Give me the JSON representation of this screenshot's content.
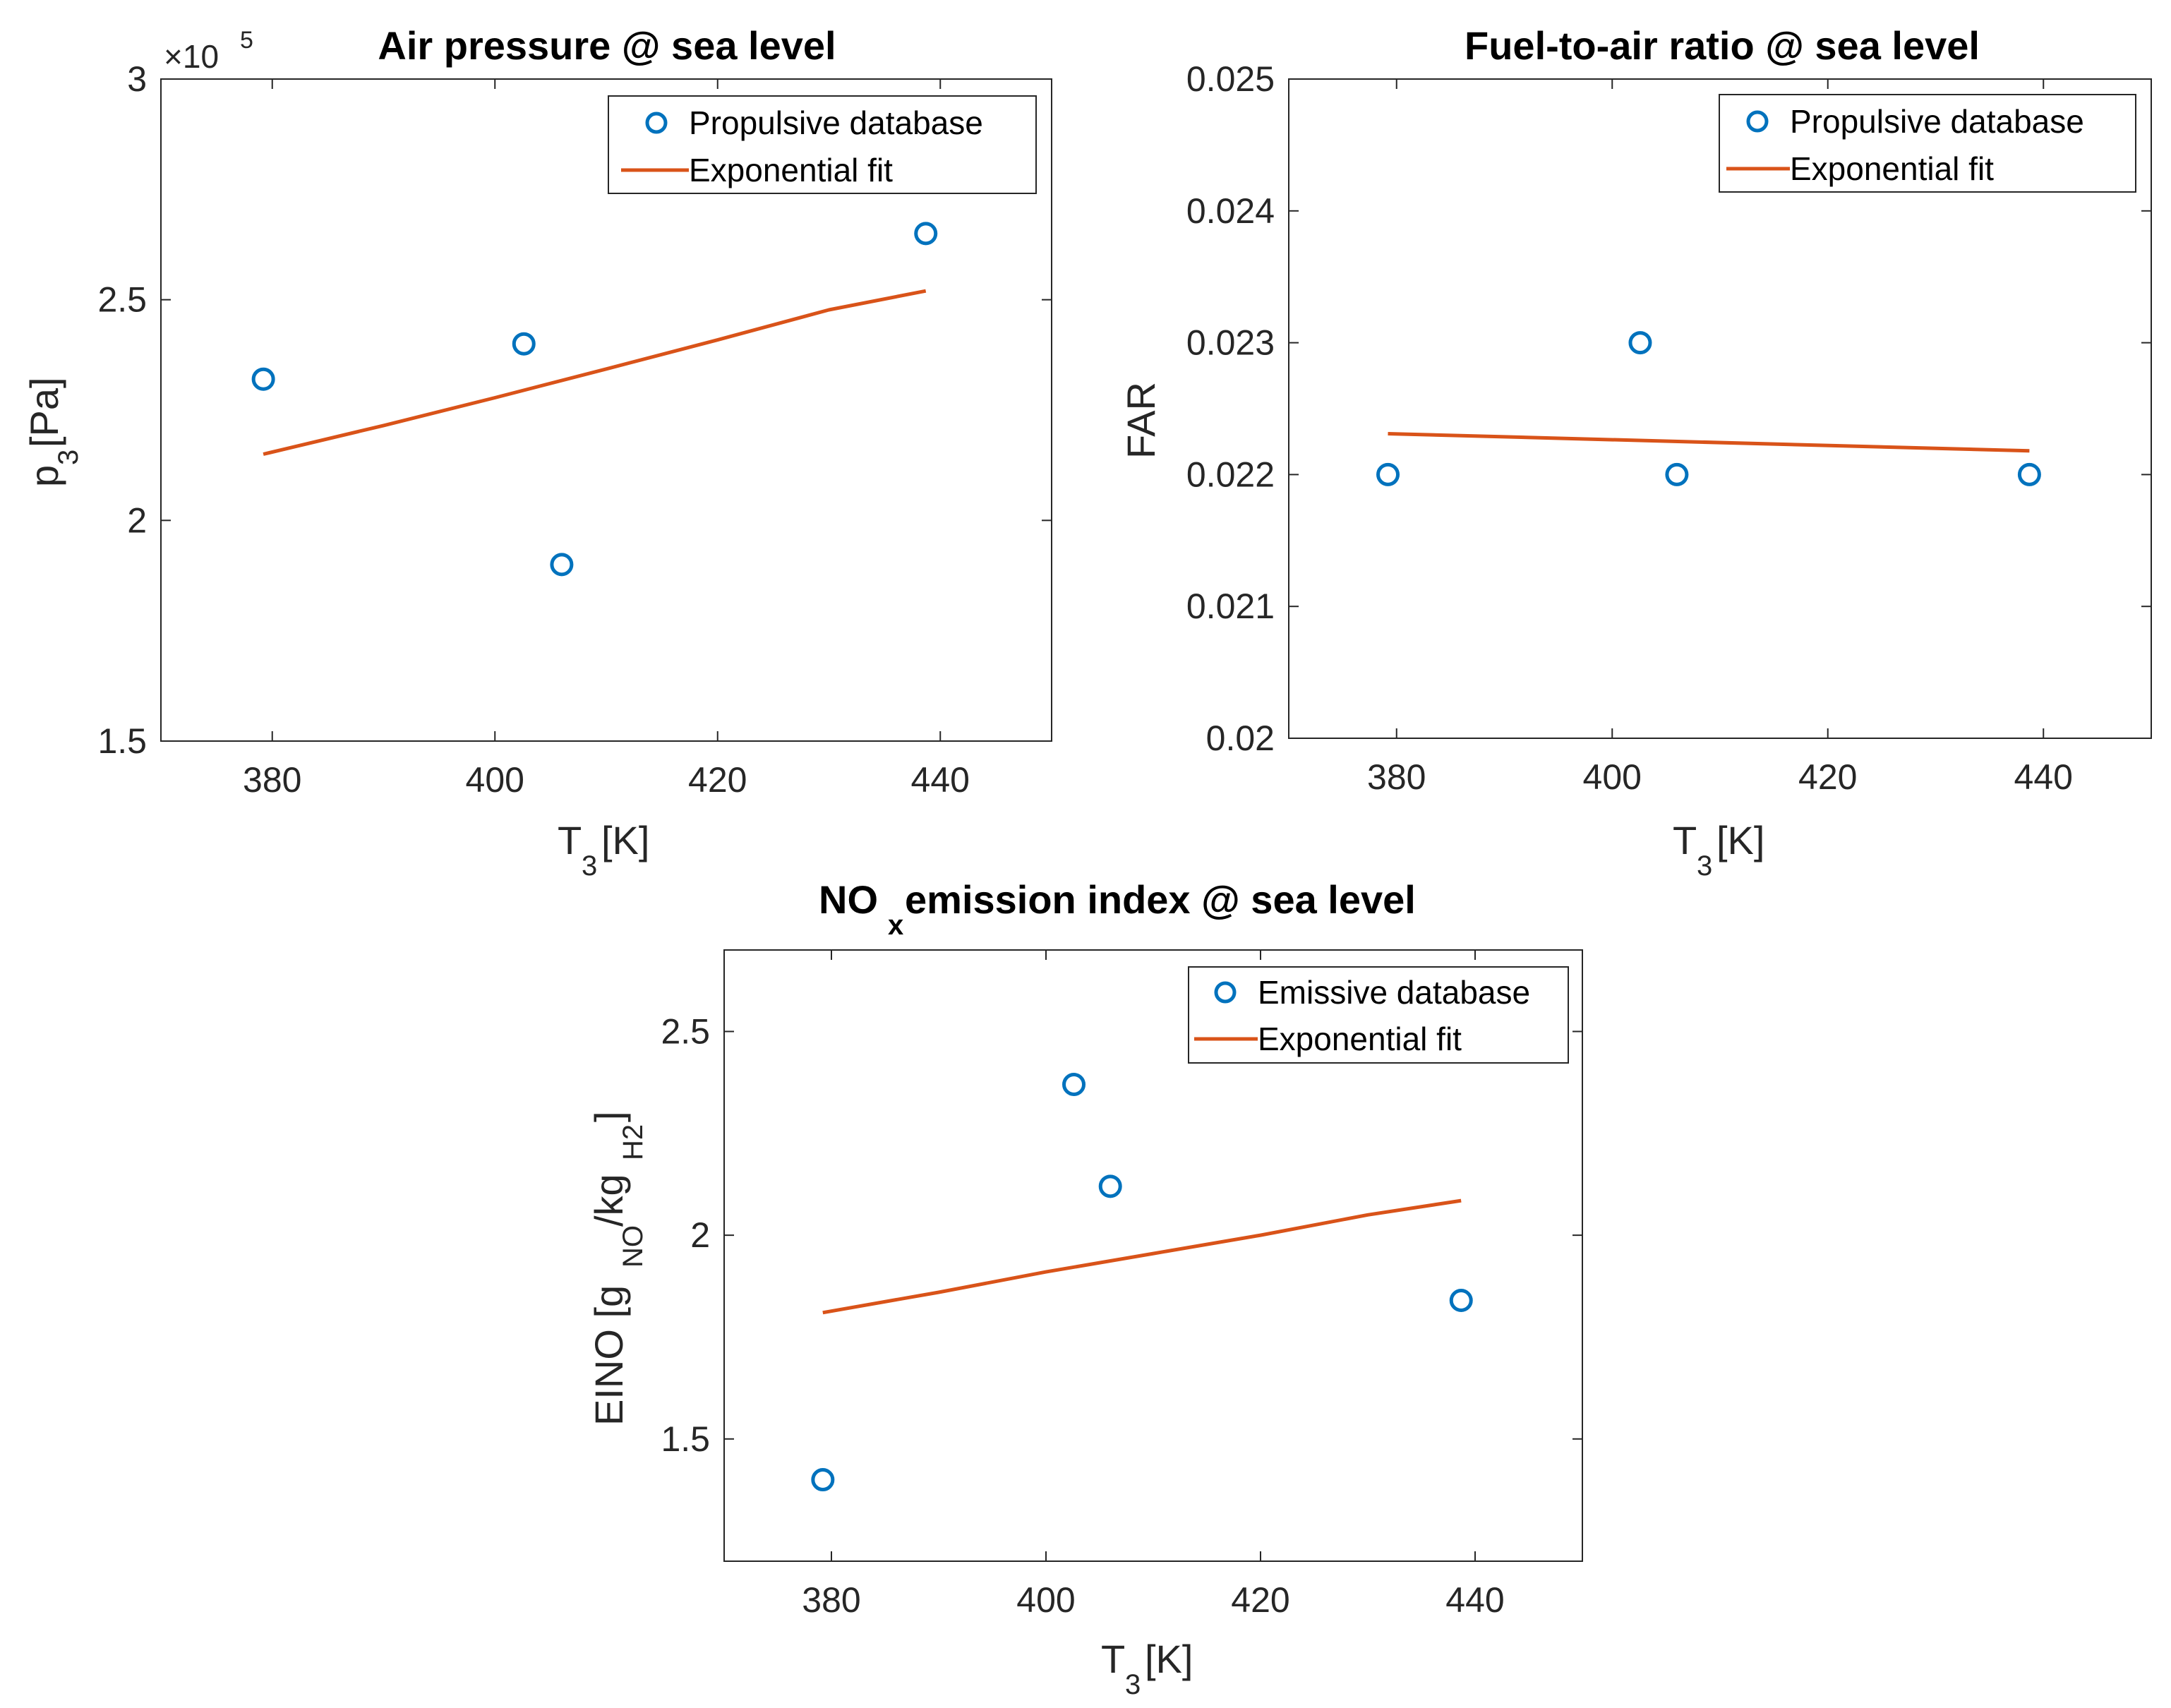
{
  "colors": {
    "scatter": "#0072BD",
    "fit": "#D95319",
    "axis": "#262626",
    "background": "#ffffff"
  },
  "chart_data": [
    {
      "id": "air-pressure",
      "type": "scatter",
      "title": "Air pressure @ sea level",
      "xlabel": {
        "main": "T",
        "sub": "3",
        "rest": " [K]"
      },
      "ylabel": {
        "main": "p",
        "sub": "3",
        "rest": " [Pa]"
      },
      "xlim": [
        370,
        450
      ],
      "ylim": [
        150000,
        300000
      ],
      "xticks": [
        380,
        400,
        420,
        440
      ],
      "yticks": [
        150000,
        200000,
        250000,
        300000
      ],
      "ytick_labels": [
        "1.5",
        "2",
        "2.5",
        "3"
      ],
      "y_exponent": {
        "prefix": "×10",
        "power": "5"
      },
      "legend_location": "top-right",
      "series": [
        {
          "name": "Propulsive database",
          "kind": "markers",
          "x": [
            379.2,
            402.6,
            406.0,
            438.7
          ],
          "y": [
            232000,
            240000,
            190000,
            265000
          ]
        },
        {
          "name": "Exponential fit",
          "kind": "line",
          "x": [
            379.2,
            390,
            400,
            410,
            420,
            430,
            438.7
          ],
          "y": [
            215000,
            221500,
            227800,
            234300,
            240900,
            247700,
            252000
          ]
        }
      ]
    },
    {
      "id": "fuel-to-air-ratio",
      "type": "scatter",
      "title": "Fuel-to-air ratio @ sea level",
      "xlabel": {
        "main": "T",
        "sub": "3",
        "rest": " [K]"
      },
      "ylabel": {
        "main": "FAR",
        "sub": "",
        "rest": ""
      },
      "xlim": [
        370,
        450
      ],
      "ylim": [
        0.02,
        0.025
      ],
      "xticks": [
        380,
        400,
        420,
        440
      ],
      "yticks": [
        0.02,
        0.021,
        0.022,
        0.023,
        0.024,
        0.025
      ],
      "ytick_labels": [
        "0.02",
        "0.021",
        "0.022",
        "0.023",
        "0.024",
        "0.025"
      ],
      "legend_location": "top-right",
      "series": [
        {
          "name": "Propulsive database",
          "kind": "markers",
          "x": [
            379.2,
            402.6,
            406.0,
            438.7
          ],
          "y": [
            0.022,
            0.023,
            0.022,
            0.022
          ]
        },
        {
          "name": "Exponential fit",
          "kind": "line",
          "x": [
            379.2,
            438.7
          ],
          "y": [
            0.02231,
            0.02218
          ]
        }
      ]
    },
    {
      "id": "nox-emission-index",
      "type": "scatter",
      "title": {
        "main": "NO",
        "sub": "x",
        "rest": " emission index @ sea level"
      },
      "xlabel": {
        "main": "T",
        "sub": "3",
        "rest": " [K]"
      },
      "ylabel": {
        "parts": [
          "EINO [g",
          "NO",
          "/kg",
          "H2",
          "]"
        ]
      },
      "xlim": [
        370,
        450
      ],
      "ylim": [
        1.2,
        2.7
      ],
      "xticks": [
        380,
        400,
        420,
        440
      ],
      "yticks": [
        1.5,
        2,
        2.5
      ],
      "ytick_labels": [
        "1.5",
        "2",
        "2.5"
      ],
      "legend_location": "top-right",
      "series": [
        {
          "name": "Emissive database",
          "kind": "markers",
          "x": [
            379.2,
            402.6,
            406.0,
            438.7
          ],
          "y": [
            1.4,
            2.37,
            2.12,
            1.84
          ]
        },
        {
          "name": "Exponential fit",
          "kind": "line",
          "x": [
            379.2,
            390,
            400,
            410,
            420,
            430,
            438.7
          ],
          "y": [
            1.81,
            1.86,
            1.91,
            1.955,
            2.0,
            2.05,
            2.085
          ]
        }
      ]
    }
  ]
}
